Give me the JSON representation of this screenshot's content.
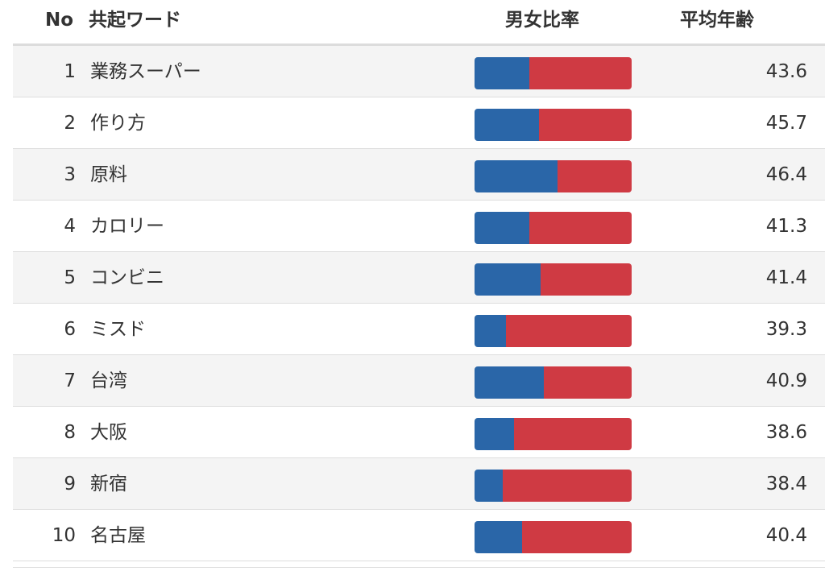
{
  "header": {
    "no": "No",
    "word": "共起ワード",
    "ratio": "男女比率",
    "age": "平均年齢"
  },
  "colors": {
    "male": "#2a66a8",
    "female": "#cf3a43"
  },
  "rows": [
    {
      "no": "1",
      "word": "業務スーパー",
      "male_ratio": 0.35,
      "age": "43.6"
    },
    {
      "no": "2",
      "word": "作り方",
      "male_ratio": 0.41,
      "age": "45.7"
    },
    {
      "no": "3",
      "word": "原料",
      "male_ratio": 0.53,
      "age": "46.4"
    },
    {
      "no": "4",
      "word": "カロリー",
      "male_ratio": 0.35,
      "age": "41.3"
    },
    {
      "no": "5",
      "word": "コンビニ",
      "male_ratio": 0.42,
      "age": "41.4"
    },
    {
      "no": "6",
      "word": "ミスド",
      "male_ratio": 0.2,
      "age": "39.3"
    },
    {
      "no": "7",
      "word": "台湾",
      "male_ratio": 0.44,
      "age": "40.9"
    },
    {
      "no": "8",
      "word": "大阪",
      "male_ratio": 0.25,
      "age": "38.6"
    },
    {
      "no": "9",
      "word": "新宿",
      "male_ratio": 0.18,
      "age": "38.4"
    },
    {
      "no": "10",
      "word": "名古屋",
      "male_ratio": 0.3,
      "age": "40.4"
    }
  ]
}
